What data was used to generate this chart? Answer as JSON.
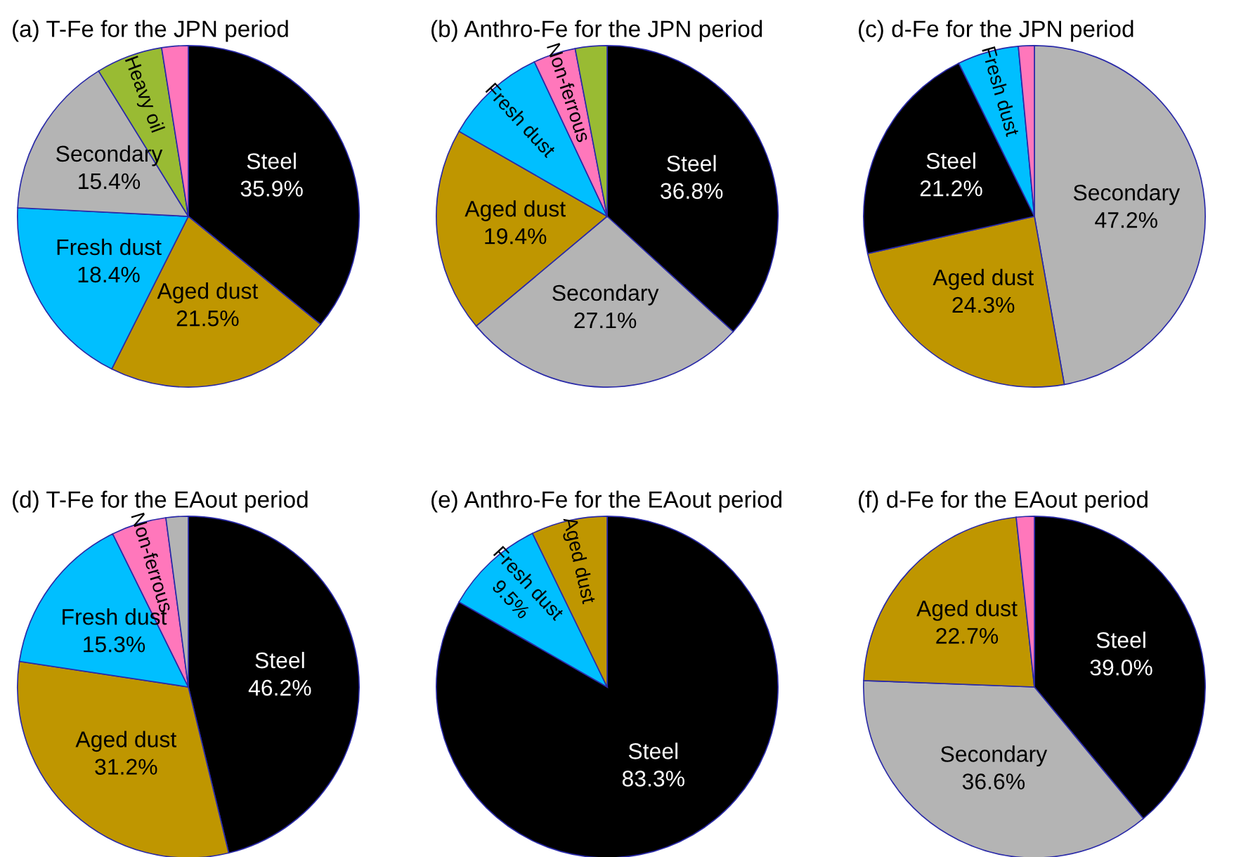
{
  "chart_data": [
    {
      "type": "pie",
      "title": "(a) T-Fe for the JPN period",
      "categories": [
        "Steel",
        "Aged dust",
        "Fresh dust",
        "Secondary",
        "Heavy oil",
        null
      ],
      "values": [
        35.9,
        21.5,
        18.4,
        15.4,
        6.3,
        2.5
      ],
      "value_labels": [
        "35.9%",
        "21.5%",
        "18.4%",
        "15.4%",
        null,
        null
      ],
      "colors": [
        "#000000",
        "#bf9600",
        "#00bfff",
        "#b4b4b4",
        "#99bb33",
        "#ff77bb"
      ]
    },
    {
      "type": "pie",
      "title": "(b) Anthro-Fe for the JPN period",
      "categories": [
        "Steel",
        "Secondary",
        "Aged dust",
        "Fresh dust",
        "Non-ferrous",
        null
      ],
      "values": [
        36.8,
        27.1,
        19.4,
        9.7,
        4.0,
        3.0
      ],
      "value_labels": [
        "36.8%",
        "27.1%",
        "19.4%",
        null,
        null,
        null
      ],
      "colors": [
        "#000000",
        "#b4b4b4",
        "#bf9600",
        "#00bfff",
        "#ff77bb",
        "#99bb33"
      ]
    },
    {
      "type": "pie",
      "title": "(c) d-Fe for the JPN period",
      "categories": [
        "Secondary",
        "Aged dust",
        "Steel",
        "Fresh dust",
        null
      ],
      "values": [
        47.2,
        24.3,
        21.2,
        5.8,
        1.5
      ],
      "value_labels": [
        "47.2%",
        "24.3%",
        "21.2%",
        null,
        null
      ],
      "colors": [
        "#b4b4b4",
        "#bf9600",
        "#000000",
        "#00bfff",
        "#ff77bb"
      ]
    },
    {
      "type": "pie",
      "title": "(d) T-Fe for the EAout period",
      "categories": [
        "Steel",
        "Aged dust",
        "Fresh dust",
        "Non-ferrous",
        null
      ],
      "values": [
        46.2,
        31.2,
        15.3,
        5.2,
        2.1
      ],
      "value_labels": [
        "46.2%",
        "31.2%",
        "15.3%",
        null,
        null
      ],
      "colors": [
        "#000000",
        "#bf9600",
        "#00bfff",
        "#ff77bb",
        "#b4b4b4"
      ]
    },
    {
      "type": "pie",
      "title": "(e) Anthro-Fe for the EAout period",
      "categories": [
        "Steel",
        "Fresh dust",
        "Aged dust"
      ],
      "values": [
        83.3,
        9.5,
        7.2
      ],
      "value_labels": [
        "83.3%",
        "9.5%",
        null
      ],
      "colors": [
        "#000000",
        "#00bfff",
        "#bf9600"
      ]
    },
    {
      "type": "pie",
      "title": "(f) d-Fe for the EAout period",
      "categories": [
        "Steel",
        "Secondary",
        "Aged dust",
        null
      ],
      "values": [
        39.0,
        36.6,
        22.7,
        1.7
      ],
      "value_labels": [
        "39.0%",
        "36.6%",
        "22.7%",
        null
      ],
      "colors": [
        "#000000",
        "#b4b4b4",
        "#bf9600",
        "#ff77bb"
      ]
    }
  ]
}
